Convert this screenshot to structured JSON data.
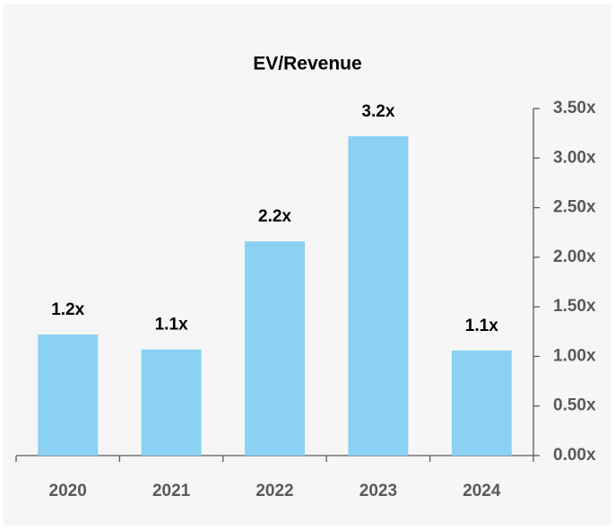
{
  "chart_data": {
    "type": "bar",
    "title": "EV/Revenue",
    "categories": [
      "2020",
      "2021",
      "2022",
      "2023",
      "2024"
    ],
    "values": [
      1.22,
      1.07,
      2.16,
      3.22,
      1.06
    ],
    "value_labels": [
      "1.2x",
      "1.1x",
      "2.2x",
      "3.2x",
      "1.1x"
    ],
    "color": "#8ad1f3",
    "ylim": [
      0,
      3.5
    ],
    "yticks": [
      {
        "value": 0,
        "label": "0.00x"
      },
      {
        "value": 0.5,
        "label": "0.50x"
      },
      {
        "value": 1,
        "label": "1.00x"
      },
      {
        "value": 1.5,
        "label": "1.50x"
      },
      {
        "value": 2,
        "label": "2.00x"
      },
      {
        "value": 2.5,
        "label": "2.50x"
      },
      {
        "value": 3,
        "label": "3.00x"
      },
      {
        "value": 3.5,
        "label": "3.50x"
      }
    ],
    "y_axis_side": "right",
    "grid": false
  }
}
